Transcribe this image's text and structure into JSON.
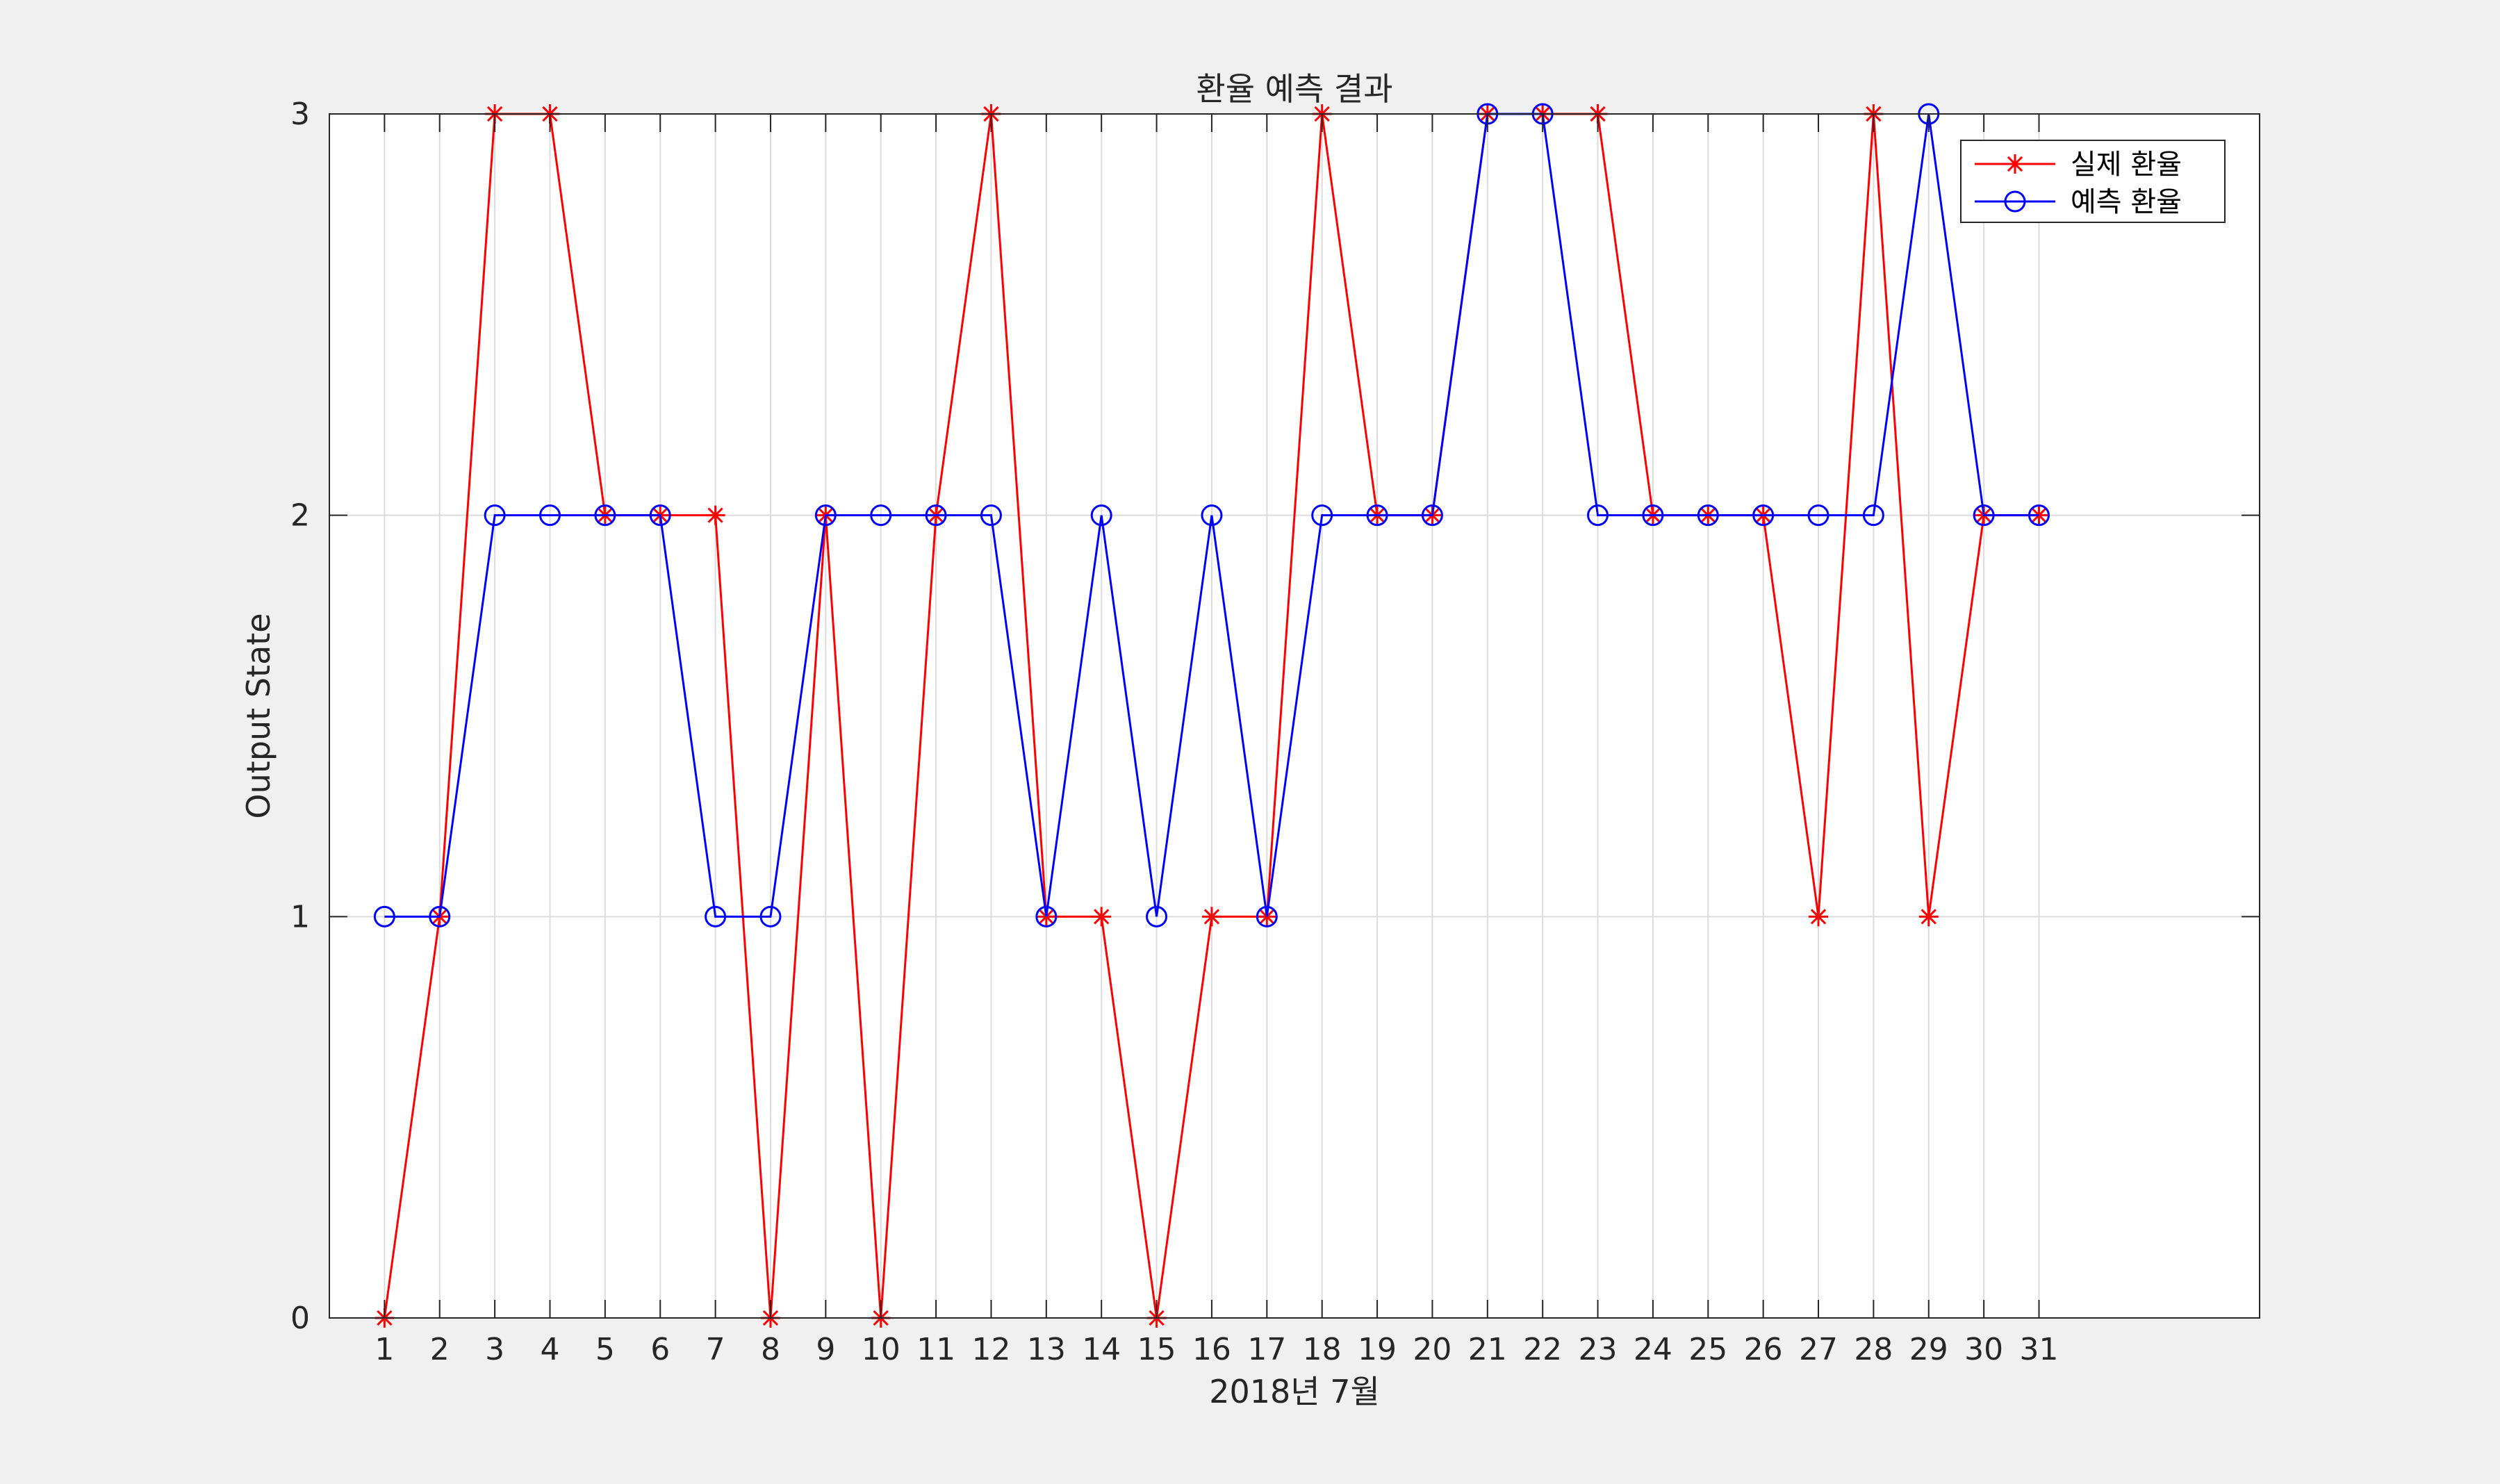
{
  "window": {
    "background": "#f0f0f0",
    "axes_background": "#ffffff",
    "grid_color": "#dcdcdc",
    "axis_color": "#262626"
  },
  "chart_data": {
    "type": "line",
    "title": "환율 예측 결과",
    "xlabel": "2018년 7월",
    "ylabel": "Output State",
    "x": [
      1,
      2,
      3,
      4,
      5,
      6,
      7,
      8,
      9,
      10,
      11,
      12,
      13,
      14,
      15,
      16,
      17,
      18,
      19,
      20,
      21,
      22,
      23,
      24,
      25,
      26,
      27,
      28,
      29,
      30,
      31
    ],
    "xlim": [
      0,
      35
    ],
    "ylim": [
      0,
      3
    ],
    "xticks": [
      1,
      2,
      3,
      4,
      5,
      6,
      7,
      8,
      9,
      10,
      11,
      12,
      13,
      14,
      15,
      16,
      17,
      18,
      19,
      20,
      21,
      22,
      23,
      24,
      25,
      26,
      27,
      28,
      29,
      30,
      31
    ],
    "yticks": [
      0,
      1,
      2,
      3
    ],
    "grid": true,
    "legend_position": "top-right",
    "series": [
      {
        "name": "실제 환율",
        "color": "#ff0000",
        "marker": "asterisk",
        "values": [
          0,
          1,
          3,
          3,
          2,
          2,
          2,
          0,
          2,
          0,
          2,
          3,
          1,
          1,
          0,
          1,
          1,
          3,
          2,
          2,
          3,
          3,
          3,
          2,
          2,
          2,
          1,
          3,
          1,
          2,
          2
        ]
      },
      {
        "name": "예측 환율",
        "color": "#0000ff",
        "marker": "circle",
        "values": [
          1,
          1,
          2,
          2,
          2,
          2,
          1,
          1,
          2,
          2,
          2,
          2,
          1,
          2,
          1,
          2,
          1,
          2,
          2,
          2,
          3,
          3,
          2,
          2,
          2,
          2,
          2,
          2,
          3,
          2,
          2
        ]
      }
    ]
  }
}
